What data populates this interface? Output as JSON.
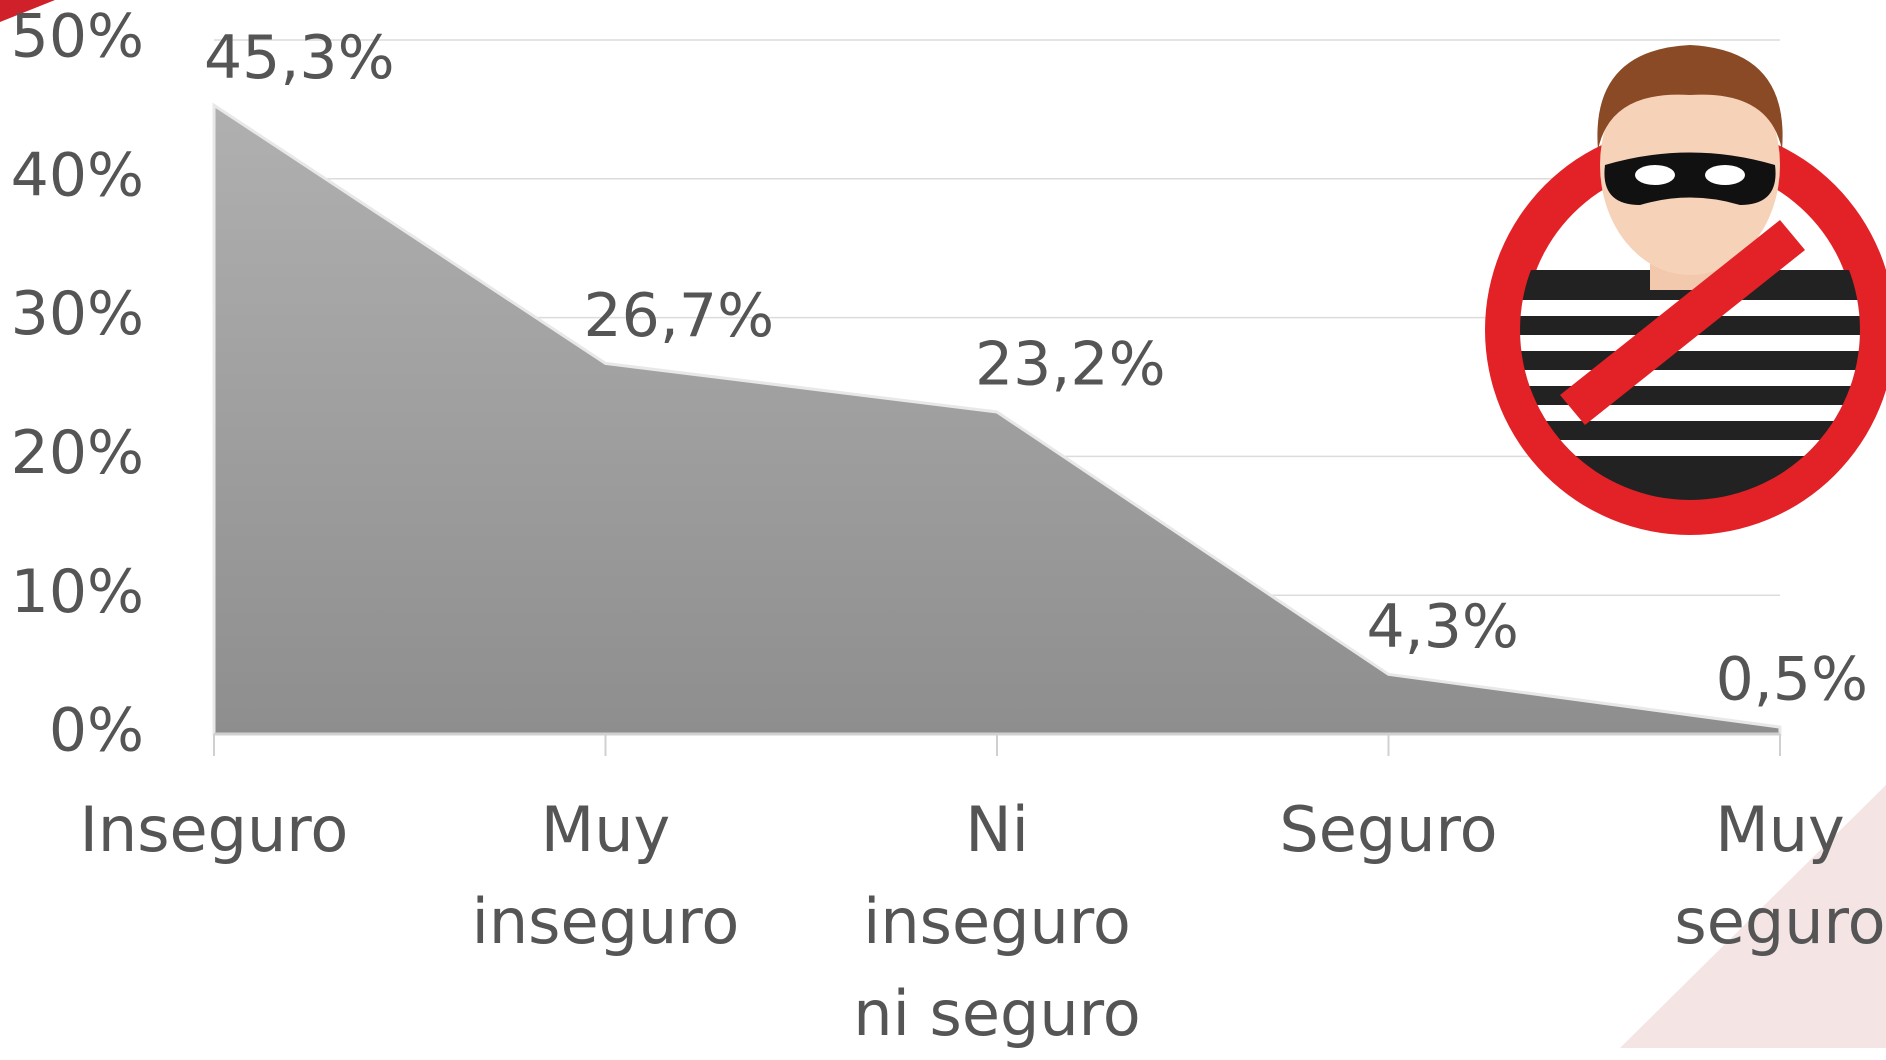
{
  "chart_data": {
    "type": "area",
    "categories": [
      "Inseguro",
      "Muy inseguro",
      "Ni inseguro ni seguro",
      "Seguro",
      "Muy seguro"
    ],
    "values": [
      45.3,
      26.7,
      23.2,
      4.3,
      0.5
    ],
    "value_labels": [
      "45,3%",
      "26,7%",
      "23,2%",
      "4,3%",
      "0,5%"
    ],
    "color": "#9a9a9a",
    "ylim": [
      0,
      50
    ],
    "yticks": [
      {
        "value": 0,
        "label": "0%"
      },
      {
        "value": 10,
        "label": "10%"
      },
      {
        "value": 20,
        "label": "20%"
      },
      {
        "value": 30,
        "label": "30%"
      },
      {
        "value": 40,
        "label": "40%"
      },
      {
        "value": 50,
        "label": "50%"
      }
    ],
    "grid": true
  }
}
